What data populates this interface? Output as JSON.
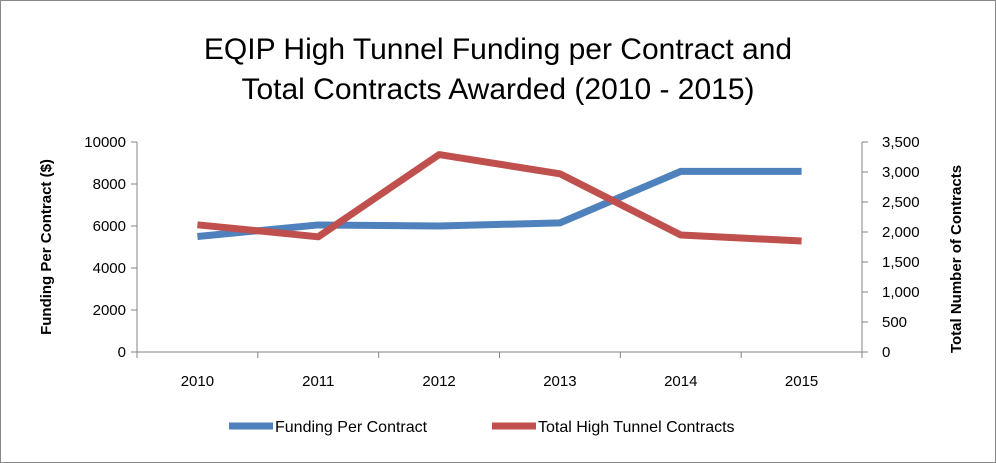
{
  "chart_data": {
    "type": "line",
    "title_lines": [
      "EQIP High Tunnel Funding per Contract and",
      "Total Contracts Awarded (2010 - 2015)"
    ],
    "categories": [
      "2010",
      "2011",
      "2012",
      "2013",
      "2014",
      "2015"
    ],
    "y_left": {
      "label": "Funding Per Contract ($)",
      "range": [
        0,
        10000
      ],
      "ticks": [
        0,
        2000,
        4000,
        6000,
        8000,
        10000
      ],
      "tick_labels": [
        "0",
        "2000",
        "4000",
        "6000",
        "8000",
        "10000"
      ]
    },
    "y_right": {
      "label": "Total Number of Contracts",
      "range": [
        0,
        3500
      ],
      "ticks": [
        0,
        500,
        1000,
        1500,
        2000,
        2500,
        3000,
        3500
      ],
      "tick_labels": [
        "0",
        "500",
        "1,000",
        "1,500",
        "2,000",
        "2,500",
        "3,000",
        "3,500"
      ]
    },
    "series": [
      {
        "name": "Funding Per Contract",
        "axis": "left",
        "color": "#4f81bd",
        "values": [
          5500,
          6050,
          6000,
          6150,
          8600,
          8600
        ]
      },
      {
        "name": "Total High Tunnel Contracts",
        "axis": "right",
        "color": "#c0504d",
        "values": [
          2120,
          1920,
          3290,
          2970,
          1950,
          1850
        ]
      }
    ],
    "grid": false,
    "legend_position": "bottom"
  }
}
